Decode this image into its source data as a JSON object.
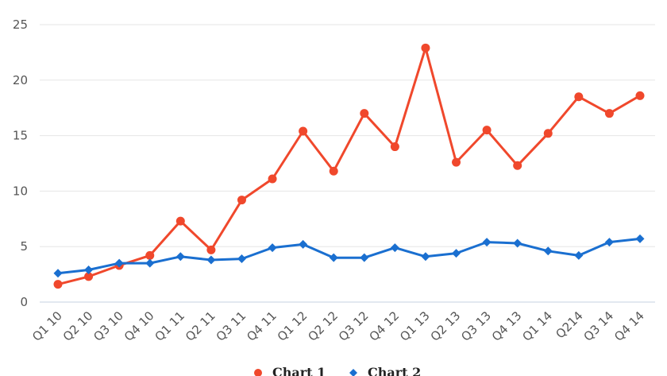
{
  "chart_data": {
    "type": "line",
    "categories": [
      "Q1 10",
      "Q2 10",
      "Q3 10",
      "Q4 10",
      "Q1 11",
      "Q2 11",
      "Q3 11",
      "Q4 11",
      "Q1 12",
      "Q2 12",
      "Q3 12",
      "Q4 12",
      "Q1 13",
      "Q2 13",
      "Q3 13",
      "Q4 13",
      "Q1 14",
      "Q214",
      "Q3 14",
      "Q4 14"
    ],
    "series": [
      {
        "name": "Chart 1",
        "color": "#f0482c",
        "marker": "circle",
        "values": [
          1.6,
          2.3,
          3.3,
          4.2,
          7.3,
          4.7,
          9.2,
          11.1,
          15.4,
          11.8,
          17.0,
          14.0,
          22.9,
          12.6,
          15.5,
          12.3,
          15.2,
          18.5,
          17.0,
          18.6
        ]
      },
      {
        "name": "Chart 2",
        "color": "#1a6fd0",
        "marker": "diamond",
        "values": [
          2.6,
          2.9,
          3.5,
          3.5,
          4.1,
          3.8,
          3.9,
          4.9,
          5.2,
          4.0,
          4.0,
          4.9,
          4.1,
          4.4,
          5.4,
          5.3,
          4.6,
          4.2,
          5.4,
          5.7
        ]
      }
    ],
    "ylim": [
      0,
      25
    ],
    "yticks": [
      0,
      5,
      10,
      15,
      20,
      25
    ],
    "grid": true,
    "legend": "bottom-center",
    "title": "",
    "xlabel": "",
    "ylabel": ""
  }
}
